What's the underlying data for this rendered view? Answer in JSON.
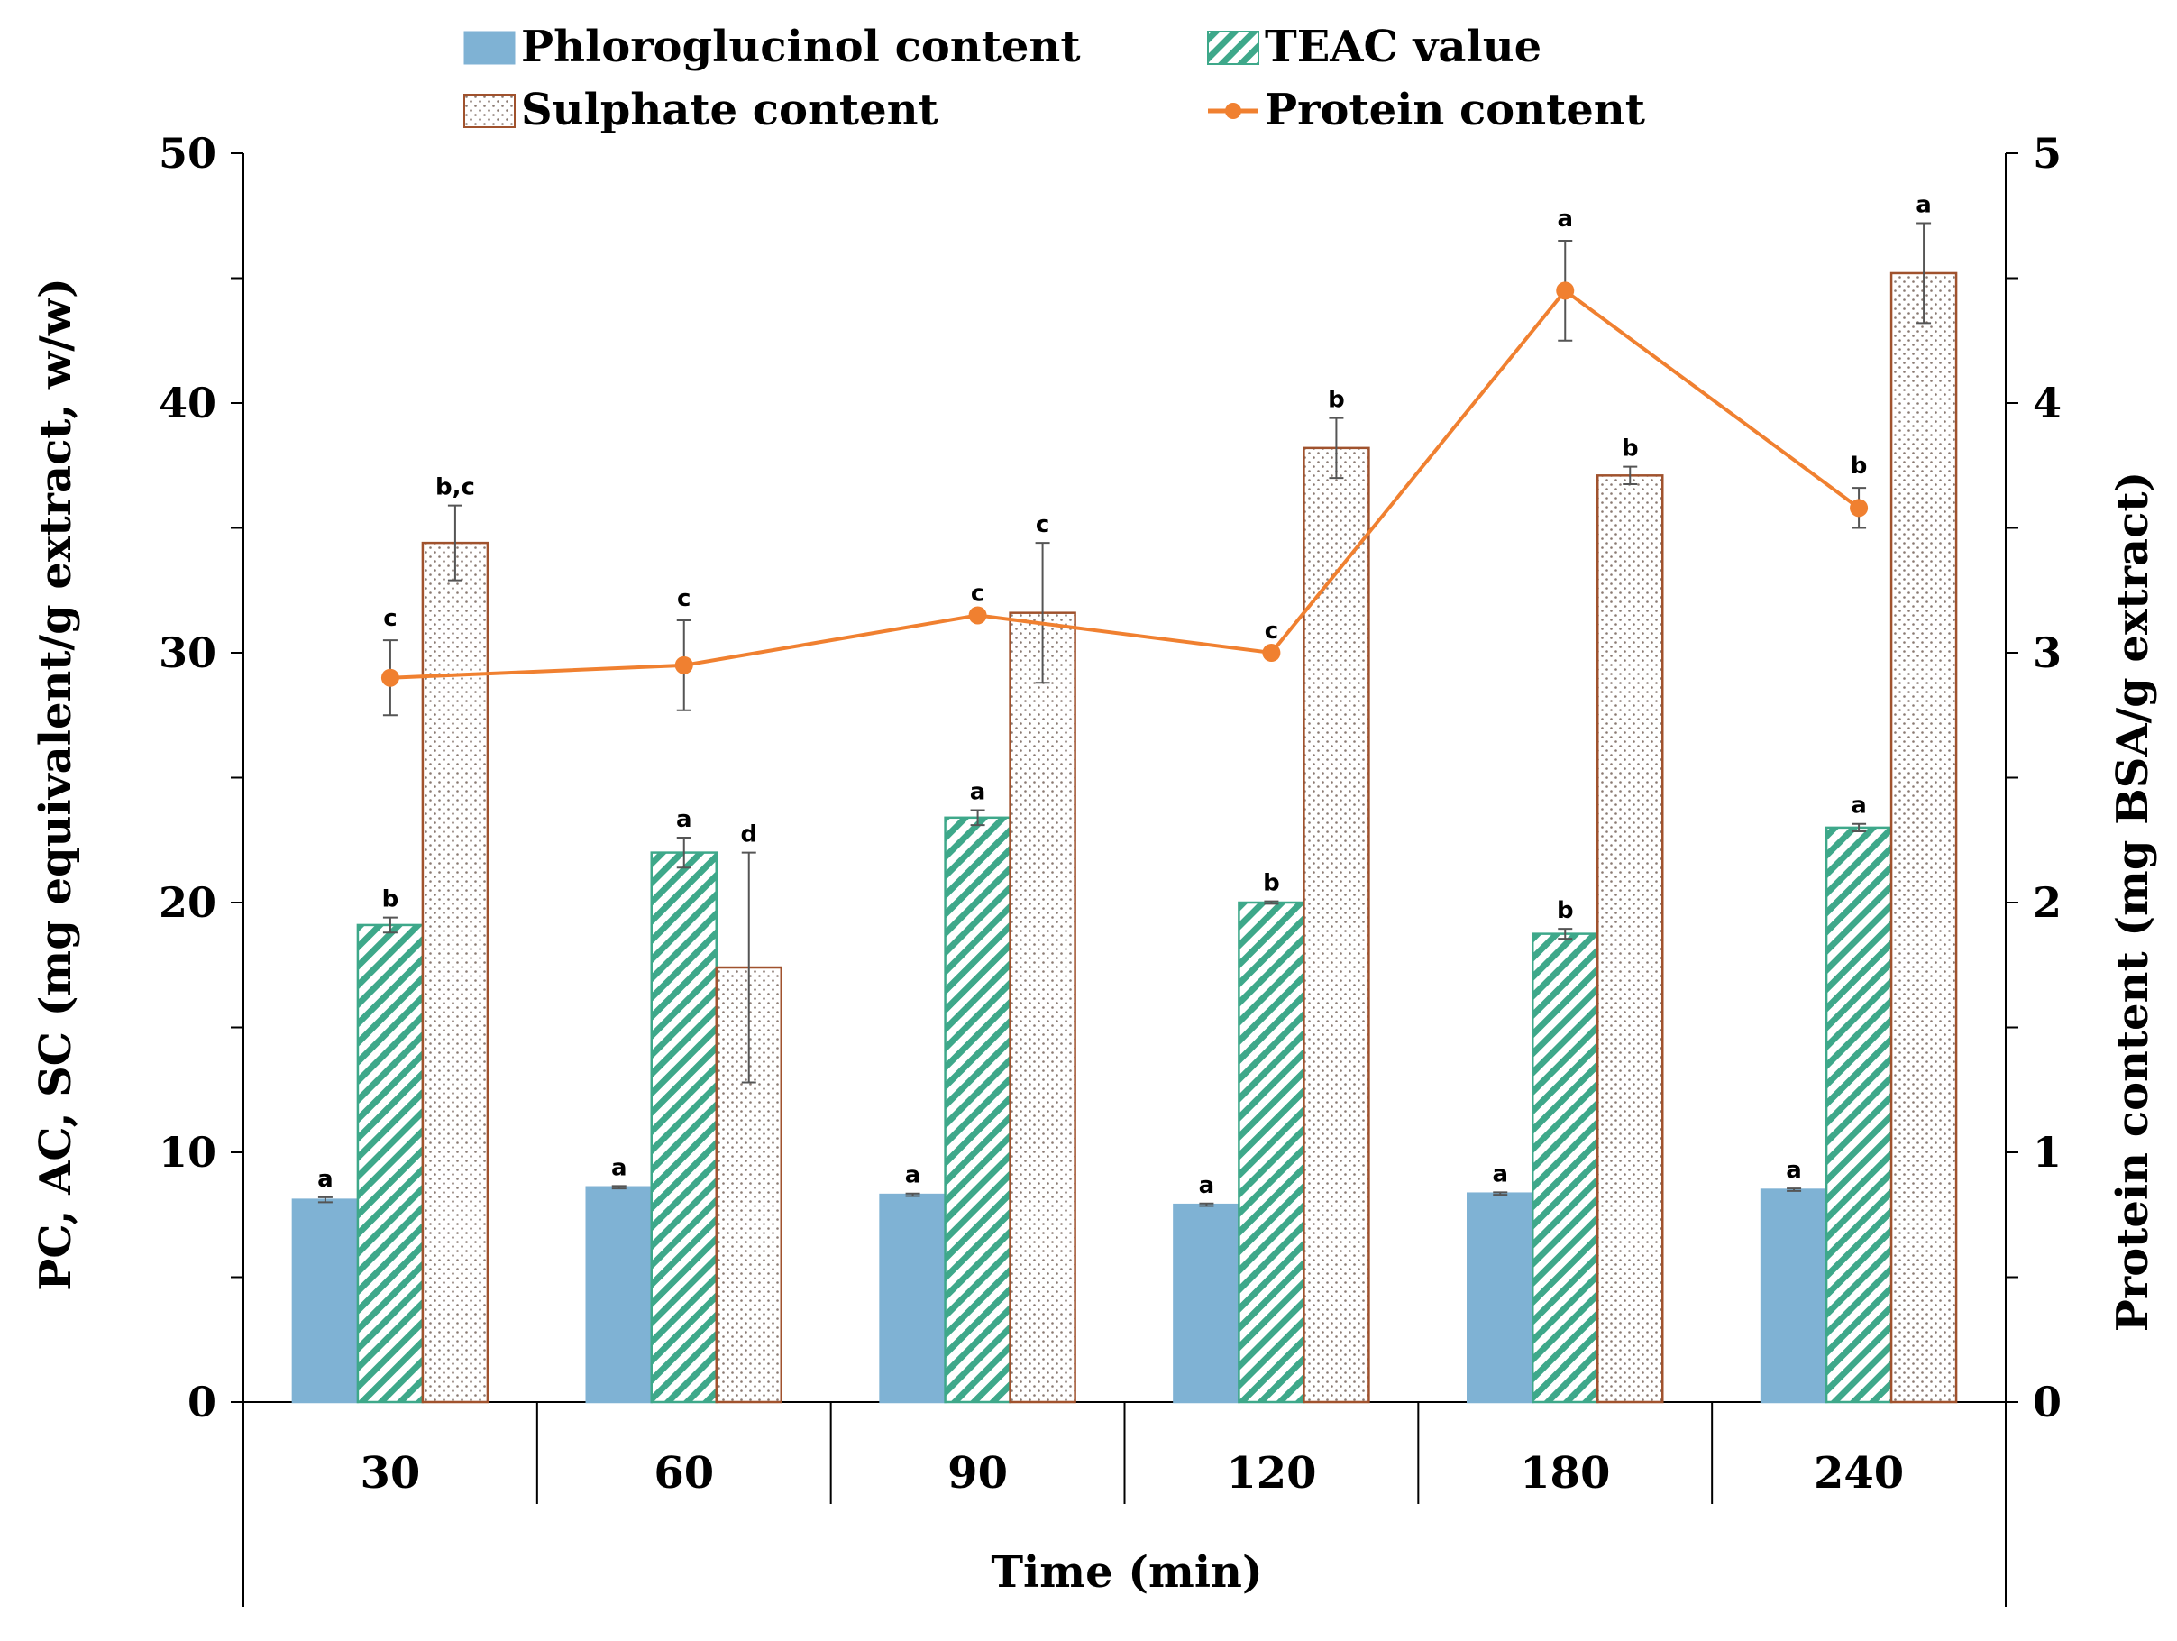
{
  "chart_data": {
    "type": "bar",
    "xlabel": "Time (min)",
    "ylabel_left": "PC, AC, SC (mg equivalent/g extract, w/w)",
    "ylabel_right": "Protein content (mg BSA/g extract)",
    "ylim_left": [
      0,
      50
    ],
    "ylim_right": [
      0,
      5
    ],
    "yticks_left": [
      "0",
      "10",
      "20",
      "30",
      "40",
      "50"
    ],
    "yticks_right": [
      "0",
      "1",
      "2",
      "3",
      "4",
      "5"
    ],
    "categories": [
      "30",
      "60",
      "90",
      "120",
      "180",
      "240"
    ],
    "series": [
      {
        "name": "Phloroglucinol content",
        "type": "bar",
        "pattern": "solid",
        "color": "#7fb2d4",
        "axis": "left",
        "values": [
          8.1,
          8.6,
          8.3,
          7.9,
          8.35,
          8.5
        ],
        "errors": [
          0.1,
          0.05,
          0.05,
          0.05,
          0.05,
          0.05
        ],
        "labels": [
          "a",
          "a",
          "a",
          "a",
          "a",
          "a"
        ]
      },
      {
        "name": "TEAC value",
        "type": "bar",
        "pattern": "diagonal",
        "color": "#3ea88a",
        "axis": "left",
        "values": [
          19.1,
          22.0,
          23.4,
          20.0,
          18.75,
          23.0
        ],
        "errors": [
          0.3,
          0.6,
          0.3,
          0.05,
          0.2,
          0.15
        ],
        "labels": [
          "b",
          "a",
          "a",
          "b",
          "b",
          "a"
        ]
      },
      {
        "name": "Sulphate content",
        "type": "bar",
        "pattern": "dotted",
        "color": "#a0522d",
        "axis": "left",
        "values": [
          34.4,
          17.4,
          31.6,
          38.2,
          37.1,
          45.2
        ],
        "errors": [
          1.5,
          4.6,
          2.8,
          1.2,
          0.35,
          2.0
        ],
        "labels": [
          "b,c",
          "d",
          "c",
          "b",
          "b",
          "a"
        ]
      },
      {
        "name": "Protein content",
        "type": "line",
        "color": "#f08030",
        "axis": "right",
        "values": [
          2.9,
          2.95,
          3.15,
          3.0,
          4.45,
          3.58
        ],
        "errors": [
          0.15,
          0.18,
          0.0,
          0.0,
          0.2,
          0.08
        ],
        "labels": [
          "c",
          "c",
          "c",
          "c",
          "a",
          "b"
        ]
      }
    ],
    "legend_position": "top"
  }
}
